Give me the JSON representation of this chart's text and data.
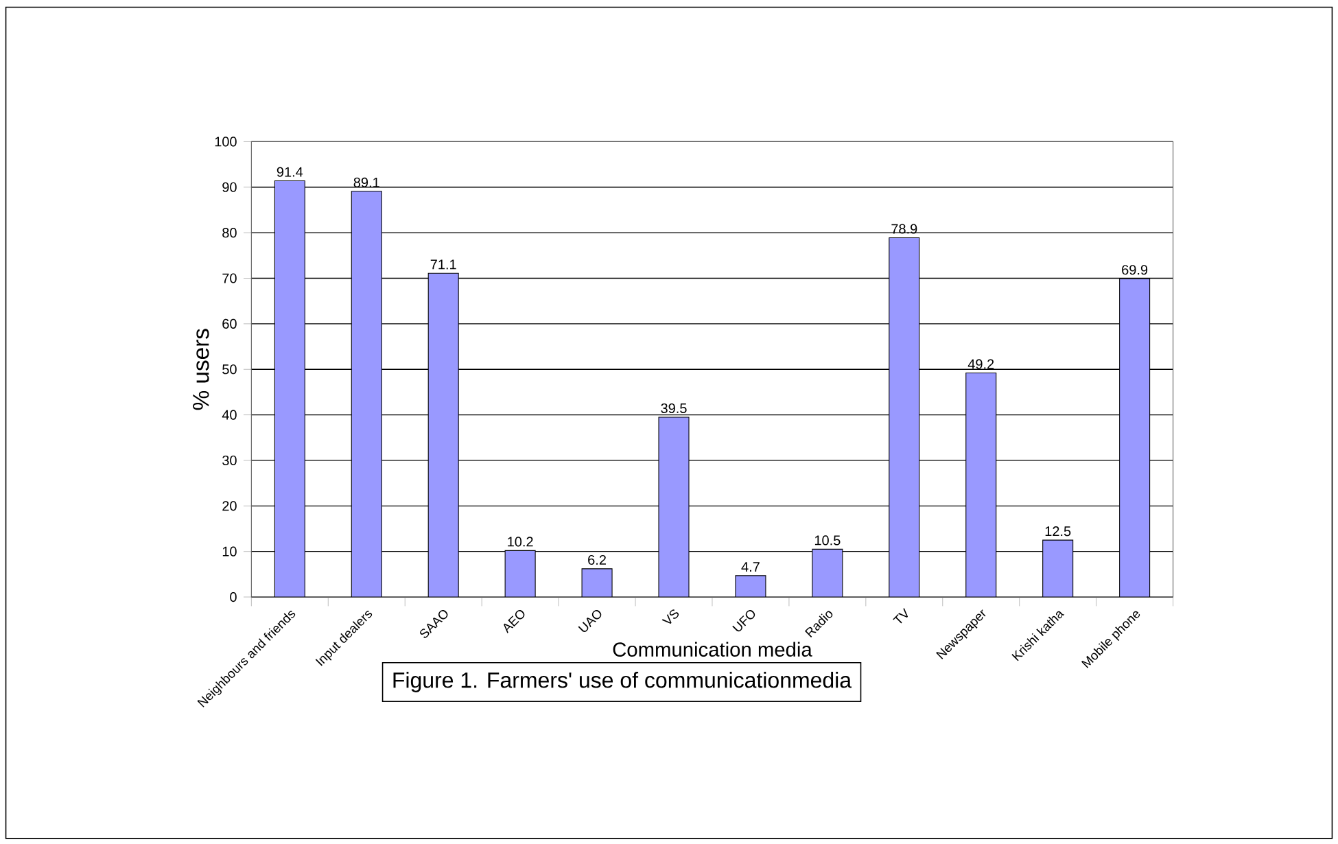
{
  "chart_data": {
    "type": "bar",
    "xlabel": "Communication media",
    "ylabel": "% users",
    "categories": [
      "Neighbours and friends",
      "Input dealers",
      "SAAO",
      "AEO",
      "UAO",
      "VS",
      "UFO",
      "Radio",
      "TV",
      "Newspaper",
      "Krishi katha",
      "Mobile phone"
    ],
    "values": [
      91.4,
      89.1,
      71.1,
      10.2,
      6.2,
      39.5,
      4.7,
      10.5,
      78.9,
      49.2,
      12.5,
      69.9
    ],
    "color": "#9999ff",
    "ylim": [
      0,
      100
    ],
    "yticks": [
      0,
      10,
      20,
      30,
      40,
      50,
      60,
      70,
      80,
      90,
      100
    ],
    "grid": "y",
    "data_labels": true,
    "annotations": [
      "Figure 1. Farmers' use of communicationmedia"
    ]
  }
}
